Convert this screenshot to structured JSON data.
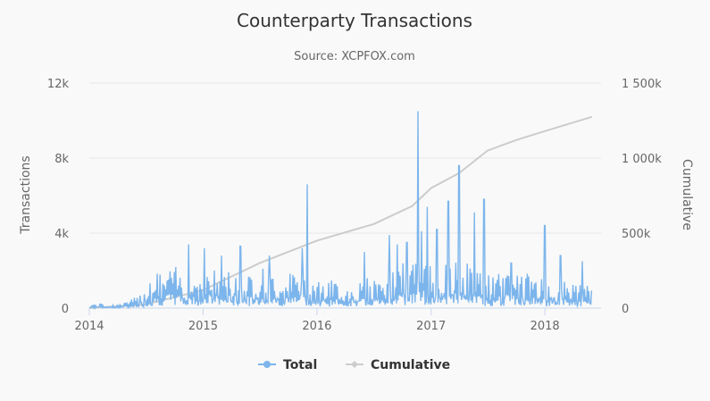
{
  "chart_data": {
    "type": "line",
    "title": "Counterparty Transactions",
    "subtitle": "Source: XCPFOX.com",
    "y_left": {
      "label": "Transactions",
      "ticks": [
        "0",
        "4k",
        "8k",
        "12k"
      ],
      "range": [
        0,
        12000
      ]
    },
    "y_right": {
      "label": "Cumulative",
      "ticks": [
        "0",
        "500k",
        "1 000k",
        "1 500k"
      ],
      "range": [
        0,
        1500000
      ]
    },
    "x_axis": {
      "ticks": [
        "2014",
        "2015",
        "2016",
        "2017",
        "2018"
      ],
      "range": [
        "2014-01-01",
        "2018-06-30"
      ]
    },
    "grid": true,
    "legend": {
      "position": "bottom",
      "items": [
        "Total",
        "Cumulative"
      ]
    },
    "colors": {
      "total": "#7cb5ec",
      "cumulative": "#cccccc",
      "grid": "#e6e6e6",
      "text": "#666666",
      "title": "#333333"
    },
    "series": [
      {
        "name": "Total",
        "axis": "left",
        "style": "daily noisy line",
        "x": [
          "2014-01-01",
          "2014-02-01",
          "2014-03-01",
          "2014-04-01",
          "2014-05-01",
          "2014-06-01",
          "2014-07-01",
          "2014-08-01",
          "2014-09-01",
          "2014-10-01",
          "2014-11-01",
          "2014-12-01",
          "2015-01-01",
          "2015-02-01",
          "2015-03-01",
          "2015-04-01",
          "2015-05-01",
          "2015-06-01",
          "2015-07-01",
          "2015-08-01",
          "2015-09-01",
          "2015-10-01",
          "2015-11-01",
          "2015-12-01",
          "2016-01-01",
          "2016-02-01",
          "2016-03-01",
          "2016-04-01",
          "2016-05-01",
          "2016-06-01",
          "2016-07-01",
          "2016-08-01",
          "2016-09-01",
          "2016-10-01",
          "2016-11-01",
          "2016-12-01",
          "2017-01-01",
          "2017-02-01",
          "2017-03-01",
          "2017-04-01",
          "2017-05-01",
          "2017-06-01",
          "2017-07-01",
          "2017-08-01",
          "2017-09-01",
          "2017-10-01",
          "2017-11-01",
          "2017-12-01",
          "2018-01-01",
          "2018-02-01",
          "2018-03-01",
          "2018-04-01",
          "2018-05-01",
          "2018-06-01"
        ],
        "values": [
          100,
          150,
          100,
          120,
          200,
          350,
          800,
          1100,
          1200,
          1300,
          1200,
          1100,
          1300,
          1200,
          1100,
          1200,
          1000,
          1100,
          1300,
          1200,
          1000,
          1100,
          1200,
          1300,
          900,
          800,
          900,
          700,
          800,
          900,
          1000,
          1100,
          1300,
          1400,
          1500,
          1700,
          1300,
          1400,
          1300,
          1500,
          1400,
          1200,
          1100,
          1000,
          1300,
          1200,
          1100,
          1000,
          900,
          900,
          800,
          900,
          700,
          800
        ],
        "spikes": [
          {
            "date": "2014-11-15",
            "value": 3400
          },
          {
            "date": "2015-01-05",
            "value": 3200
          },
          {
            "date": "2015-03-01",
            "value": 2800
          },
          {
            "date": "2015-05-01",
            "value": 3300
          },
          {
            "date": "2015-08-01",
            "value": 2800
          },
          {
            "date": "2015-11-15",
            "value": 3200
          },
          {
            "date": "2015-12-01",
            "value": 6600
          },
          {
            "date": "2016-06-01",
            "value": 3000
          },
          {
            "date": "2016-08-20",
            "value": 3900
          },
          {
            "date": "2016-09-15",
            "value": 3400
          },
          {
            "date": "2016-10-15",
            "value": 3500
          },
          {
            "date": "2016-11-20",
            "value": 10500
          },
          {
            "date": "2016-12-01",
            "value": 4100
          },
          {
            "date": "2016-12-20",
            "value": 5400
          },
          {
            "date": "2017-01-20",
            "value": 4200
          },
          {
            "date": "2017-02-25",
            "value": 5700
          },
          {
            "date": "2017-04-01",
            "value": 7600
          },
          {
            "date": "2017-05-20",
            "value": 5100
          },
          {
            "date": "2017-06-20",
            "value": 5800
          },
          {
            "date": "2017-09-15",
            "value": 2400
          },
          {
            "date": "2018-01-01",
            "value": 4400
          },
          {
            "date": "2018-02-20",
            "value": 2800
          },
          {
            "date": "2018-05-01",
            "value": 2500
          }
        ]
      },
      {
        "name": "Cumulative",
        "axis": "right",
        "x": [
          "2014-01-01",
          "2014-07-01",
          "2015-01-01",
          "2015-07-01",
          "2016-01-01",
          "2016-07-01",
          "2016-11-01",
          "2017-01-01",
          "2017-04-01",
          "2017-07-01",
          "2017-10-01",
          "2018-01-01",
          "2018-06-01"
        ],
        "values": [
          0,
          25000,
          120000,
          300000,
          450000,
          560000,
          680000,
          800000,
          900000,
          1050000,
          1120000,
          1180000,
          1275000
        ]
      }
    ]
  }
}
